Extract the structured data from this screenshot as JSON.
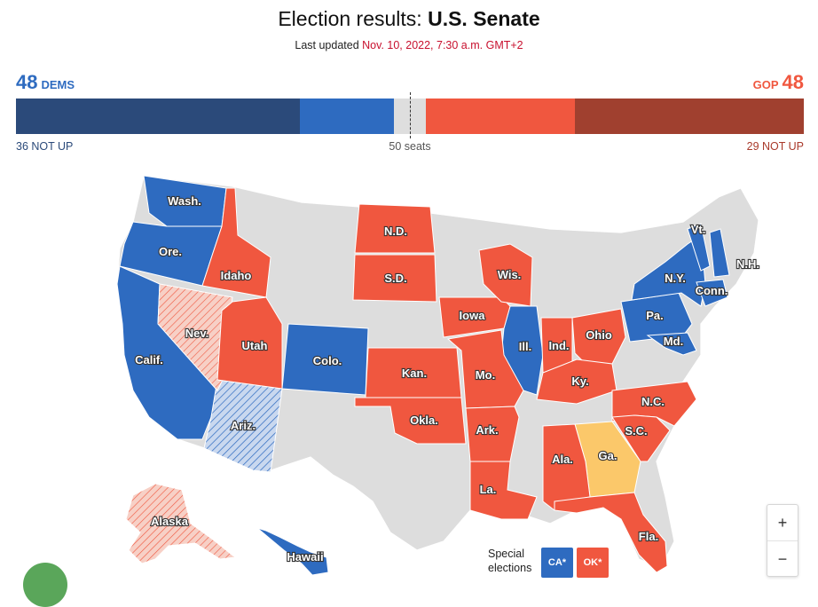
{
  "header": {
    "title_prefix": "Election results:",
    "title_strong": "U.S. Senate",
    "updated_label": "Last updated",
    "updated_time": "Nov. 10, 2022, 7:30 a.m. GMT+2"
  },
  "tally": {
    "dem_seats": "48",
    "dem_label": "DEMS",
    "gop_label": "GOP",
    "gop_seats": "48",
    "dem_not_up": "36 NOT UP",
    "majority_label": "50 seats",
    "gop_not_up": "29 NOT UP"
  },
  "bar_segments": [
    {
      "name": "dem-not-up",
      "seats": 36,
      "color": "#2b4a7a"
    },
    {
      "name": "dem-won",
      "seats": 12,
      "color": "#2e6bc0"
    },
    {
      "name": "undecided",
      "seats": 4,
      "color": "#dedede"
    },
    {
      "name": "gop-won",
      "seats": 19,
      "color": "#f0573f"
    },
    {
      "name": "gop-not-up",
      "seats": 29,
      "color": "#a0402f"
    }
  ],
  "colors": {
    "dem": "#2e6bc0",
    "gop": "#f0573f",
    "not_up": "#dddddd",
    "tossup": "#fbc86a",
    "lead_dem": "#c9d8ef",
    "lead_gop": "#f7c9bf"
  },
  "states": {
    "wash": "Wash.",
    "ore": "Ore.",
    "calif": "Calif.",
    "nev": "Nev.",
    "idaho": "Idaho",
    "utah": "Utah",
    "ariz": "Ariz.",
    "colo": "Colo.",
    "nd": "N.D.",
    "sd": "S.D.",
    "kan": "Kan.",
    "okla": "Okla.",
    "iowa": "Iowa",
    "mo": "Mo.",
    "ark": "Ark.",
    "la": "La.",
    "wis": "Wis.",
    "ill": "Ill.",
    "ind": "Ind.",
    "ohio": "Ohio",
    "ky": "Ky.",
    "ala": "Ala.",
    "ga": "Ga.",
    "sc": "S.C.",
    "nc": "N.C.",
    "fla": "Fla.",
    "pa": "Pa.",
    "md": "Md.",
    "ny": "N.Y.",
    "conn": "Conn.",
    "vt": "Vt.",
    "nh": "N.H.",
    "alaska": "Alaska",
    "hawaii": "Hawaii"
  },
  "legend": {
    "line1": "Special",
    "line2": "elections",
    "dem_box": "CA*",
    "gop_box": "OK*"
  },
  "zoom": {
    "in": "+",
    "out": "−"
  }
}
